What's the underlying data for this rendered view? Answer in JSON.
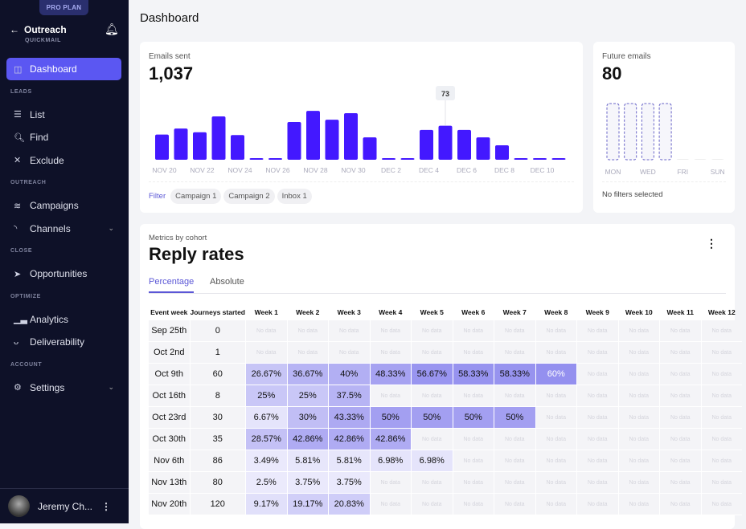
{
  "sidebar": {
    "plan": "PRO PLAN",
    "org": "Outreach",
    "org_sub": "QUICKMAIL",
    "items": [
      {
        "label": "Dashboard",
        "icon": "layout-icon",
        "glyph": "◫",
        "active": true
      },
      {
        "section": "LEADS"
      },
      {
        "label": "List",
        "icon": "list-icon",
        "glyph": "☰"
      },
      {
        "label": "Find",
        "icon": "search-icon",
        "glyph": "🔍︎"
      },
      {
        "label": "Exclude",
        "icon": "x-icon",
        "glyph": "✕"
      },
      {
        "section": "OUTREACH"
      },
      {
        "label": "Campaigns",
        "icon": "layers-icon",
        "glyph": "≋"
      },
      {
        "label": "Channels",
        "icon": "rss-icon",
        "glyph": "◝",
        "chevron": true
      },
      {
        "section": "CLOSE"
      },
      {
        "label": "Opportunities",
        "icon": "send-icon",
        "glyph": "➤"
      },
      {
        "section": "OPTIMIZE"
      },
      {
        "label": "Analytics",
        "icon": "bar-chart-icon",
        "glyph": "▁▃"
      },
      {
        "label": "Deliverability",
        "icon": "medal-icon",
        "glyph": "ᴗ"
      },
      {
        "section": "ACCOUNT"
      },
      {
        "label": "Settings",
        "icon": "gear-icon",
        "glyph": "⚙",
        "chevron": true
      }
    ],
    "user": "Jeremy Ch..."
  },
  "header": {
    "title": "Dashboard"
  },
  "emails_sent": {
    "label": "Emails sent",
    "total": "1,037",
    "tooltip": "73",
    "highlight_index": 15,
    "chart_data": {
      "type": "bar",
      "x": [
        "Nov 20",
        "Nov 21",
        "Nov 22",
        "Nov 23",
        "Nov 24",
        "Nov 25",
        "Nov 26",
        "Nov 27",
        "Nov 28",
        "Nov 29",
        "Nov 30",
        "Dec 1",
        "Dec 2",
        "Dec 3",
        "Dec 4",
        "Dec 5",
        "Dec 6",
        "Dec 7",
        "Dec 8",
        "Dec 9",
        "Dec 10",
        "Dec 11"
      ],
      "values": [
        54,
        67,
        59,
        93,
        53,
        0,
        0,
        81,
        105,
        86,
        100,
        48,
        0,
        0,
        64,
        73,
        64,
        48,
        31,
        0,
        0,
        0
      ],
      "tick_labels": [
        "NOV 20",
        "NOV 22",
        "NOV 24",
        "NOV 26",
        "NOV 28",
        "NOV 30",
        "DEC 2",
        "DEC 4",
        "DEC 6",
        "DEC 8",
        "DEC 10"
      ],
      "color": "#4318ff"
    },
    "filter_label": "Filter",
    "filters": [
      "Campaign 1",
      "Campaign 2",
      "Inbox 1"
    ]
  },
  "future_emails": {
    "label": "Future emails",
    "total": "80",
    "chart_data": {
      "type": "bar",
      "x": [
        "Mon",
        "Tue",
        "Wed",
        "Thu",
        "Fri",
        "Sat",
        "Sun"
      ],
      "values": [
        20,
        20,
        20,
        20,
        0,
        0,
        0
      ],
      "tick_labels": [
        "MON",
        "WED",
        "FRI",
        "SUN"
      ],
      "style": "dashed"
    },
    "status": "No filters selected"
  },
  "cohort": {
    "label": "Metrics by cohort",
    "title": "Reply rates",
    "tabs": [
      "Percentage",
      "Absolute"
    ],
    "active_tab": "Percentage",
    "columns": [
      "Event week",
      "Journeys started",
      "Week 1",
      "Week 2",
      "Week 3",
      "Week 4",
      "Week 5",
      "Week 6",
      "Week 7",
      "Week 8",
      "Week 9",
      "Week 10",
      "Week 11",
      "Week 12"
    ],
    "no_data": "No data",
    "rows": [
      {
        "week": "Sep 25th",
        "started": "0",
        "values": []
      },
      {
        "week": "Oct 2nd",
        "started": "1",
        "values": []
      },
      {
        "week": "Oct 9th",
        "started": "60",
        "values": [
          "26.67%",
          "36.67%",
          "40%",
          "48.33%",
          "56.67%",
          "58.33%",
          "58.33%",
          "60%"
        ]
      },
      {
        "week": "Oct 16th",
        "started": "8",
        "values": [
          "25%",
          "25%",
          "37.5%"
        ]
      },
      {
        "week": "Oct 23rd",
        "started": "30",
        "values": [
          "6.67%",
          "30%",
          "43.33%",
          "50%",
          "50%",
          "50%",
          "50%"
        ]
      },
      {
        "week": "Oct 30th",
        "started": "35",
        "values": [
          "28.57%",
          "42.86%",
          "42.86%",
          "42.86%"
        ]
      },
      {
        "week": "Nov 6th",
        "started": "86",
        "values": [
          "3.49%",
          "5.81%",
          "5.81%",
          "6.98%",
          "6.98%"
        ]
      },
      {
        "week": "Nov 13th",
        "started": "80",
        "values": [
          "2.5%",
          "3.75%",
          "3.75%"
        ]
      },
      {
        "week": "Nov 20th",
        "started": "120",
        "values": [
          "9.17%",
          "19.17%",
          "20.83%"
        ]
      }
    ]
  }
}
